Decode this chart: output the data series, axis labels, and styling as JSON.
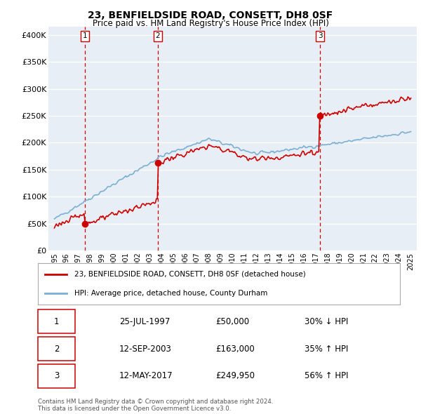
{
  "title": "23, BENFIELDSIDE ROAD, CONSETT, DH8 0SF",
  "subtitle": "Price paid vs. HM Land Registry's House Price Index (HPI)",
  "ylabel_ticks": [
    "£0",
    "£50K",
    "£100K",
    "£150K",
    "£200K",
    "£250K",
    "£300K",
    "£350K",
    "£400K"
  ],
  "ytick_values": [
    0,
    50000,
    100000,
    150000,
    200000,
    250000,
    300000,
    350000,
    400000
  ],
  "ylim": [
    0,
    415000
  ],
  "xlim_start": 1994.5,
  "xlim_end": 2025.5,
  "plot_bg_color": "#e8eef5",
  "grid_color": "#ffffff",
  "sale_color": "#cc0000",
  "hpi_color": "#7ab0d4",
  "vline_color": "#cc0000",
  "sale_dates": [
    1997.57,
    2003.71,
    2017.37
  ],
  "sale_prices": [
    50000,
    163000,
    249950
  ],
  "sale_labels": [
    "1",
    "2",
    "3"
  ],
  "legend_sale_label": "23, BENFIELDSIDE ROAD, CONSETT, DH8 0SF (detached house)",
  "legend_hpi_label": "HPI: Average price, detached house, County Durham",
  "table_rows": [
    [
      "1",
      "25-JUL-1997",
      "£50,000",
      "30% ↓ HPI"
    ],
    [
      "2",
      "12-SEP-2003",
      "£163,000",
      "35% ↑ HPI"
    ],
    [
      "3",
      "12-MAY-2017",
      "£249,950",
      "56% ↑ HPI"
    ]
  ],
  "footer": "Contains HM Land Registry data © Crown copyright and database right 2024.\nThis data is licensed under the Open Government Licence v3.0."
}
